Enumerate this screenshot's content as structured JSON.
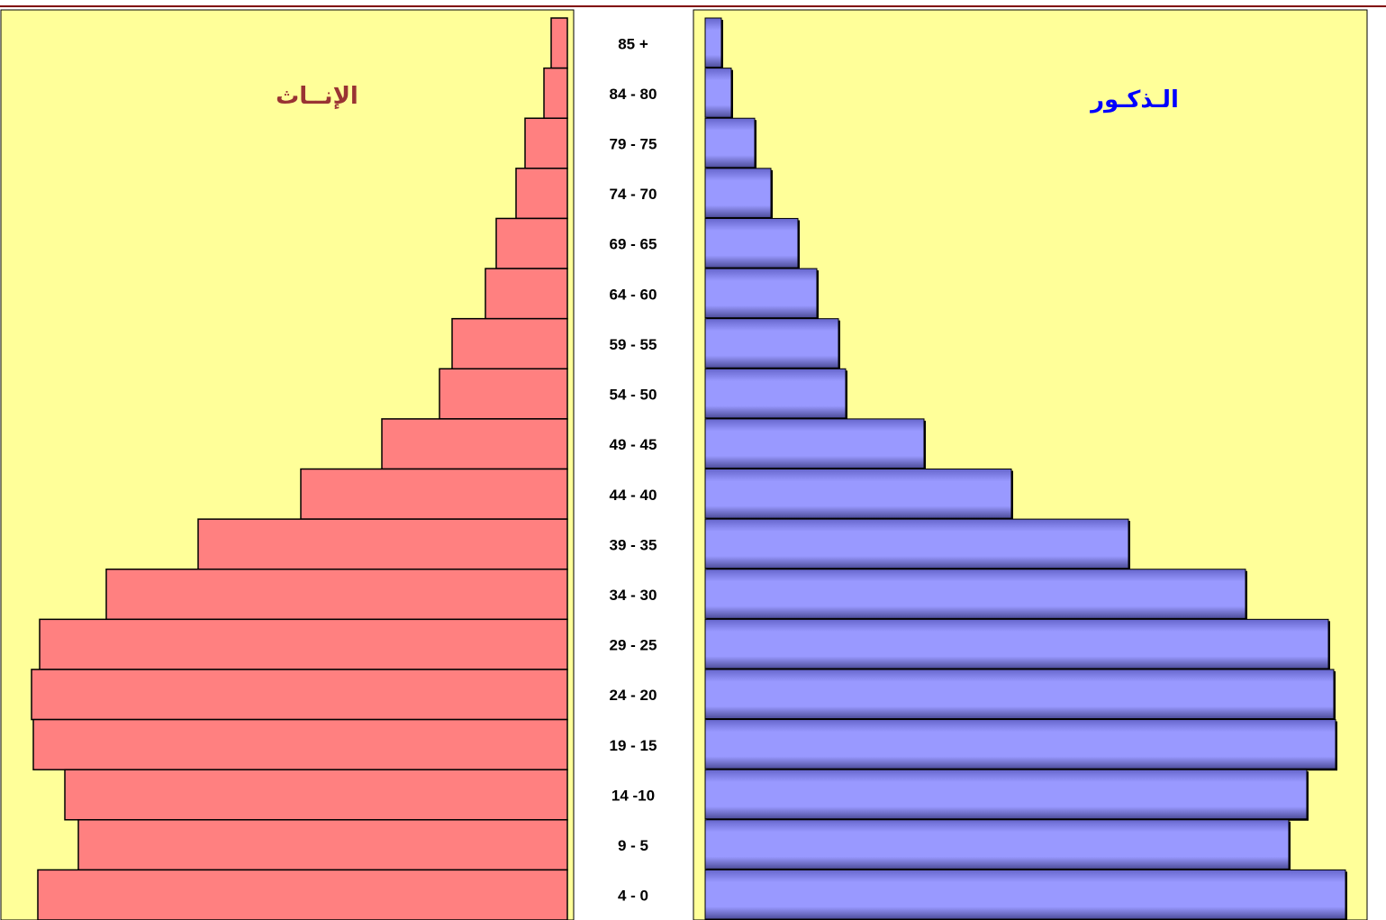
{
  "chart_data": {
    "type": "pyramid",
    "categories": [
      "85 +",
      "84 - 80",
      "79 - 75",
      "74 - 70",
      "69 - 65",
      "64 - 60",
      "59 - 55",
      "54 - 50",
      "49 - 45",
      "44 - 40",
      "39 - 35",
      "34 - 30",
      "29 - 25",
      "24 - 20",
      "19 - 15",
      "14 -10",
      "9 - 5",
      "4 - 0"
    ],
    "series": [
      {
        "name": "الإنــاث",
        "color": "#ff8080",
        "values": [
          18,
          26,
          47,
          57,
          79,
          91,
          128,
          142,
          206,
          296,
          410,
          512,
          586,
          595,
          593,
          558,
          543,
          588
        ]
      },
      {
        "name": "الـذكـور",
        "color": "#9999ff",
        "values": [
          18,
          29,
          55,
          73,
          103,
          124,
          148,
          156,
          243,
          340,
          470,
          600,
          692,
          698,
          700,
          668,
          648,
          711
        ]
      }
    ],
    "xlim": [
      0,
      720
    ]
  }
}
